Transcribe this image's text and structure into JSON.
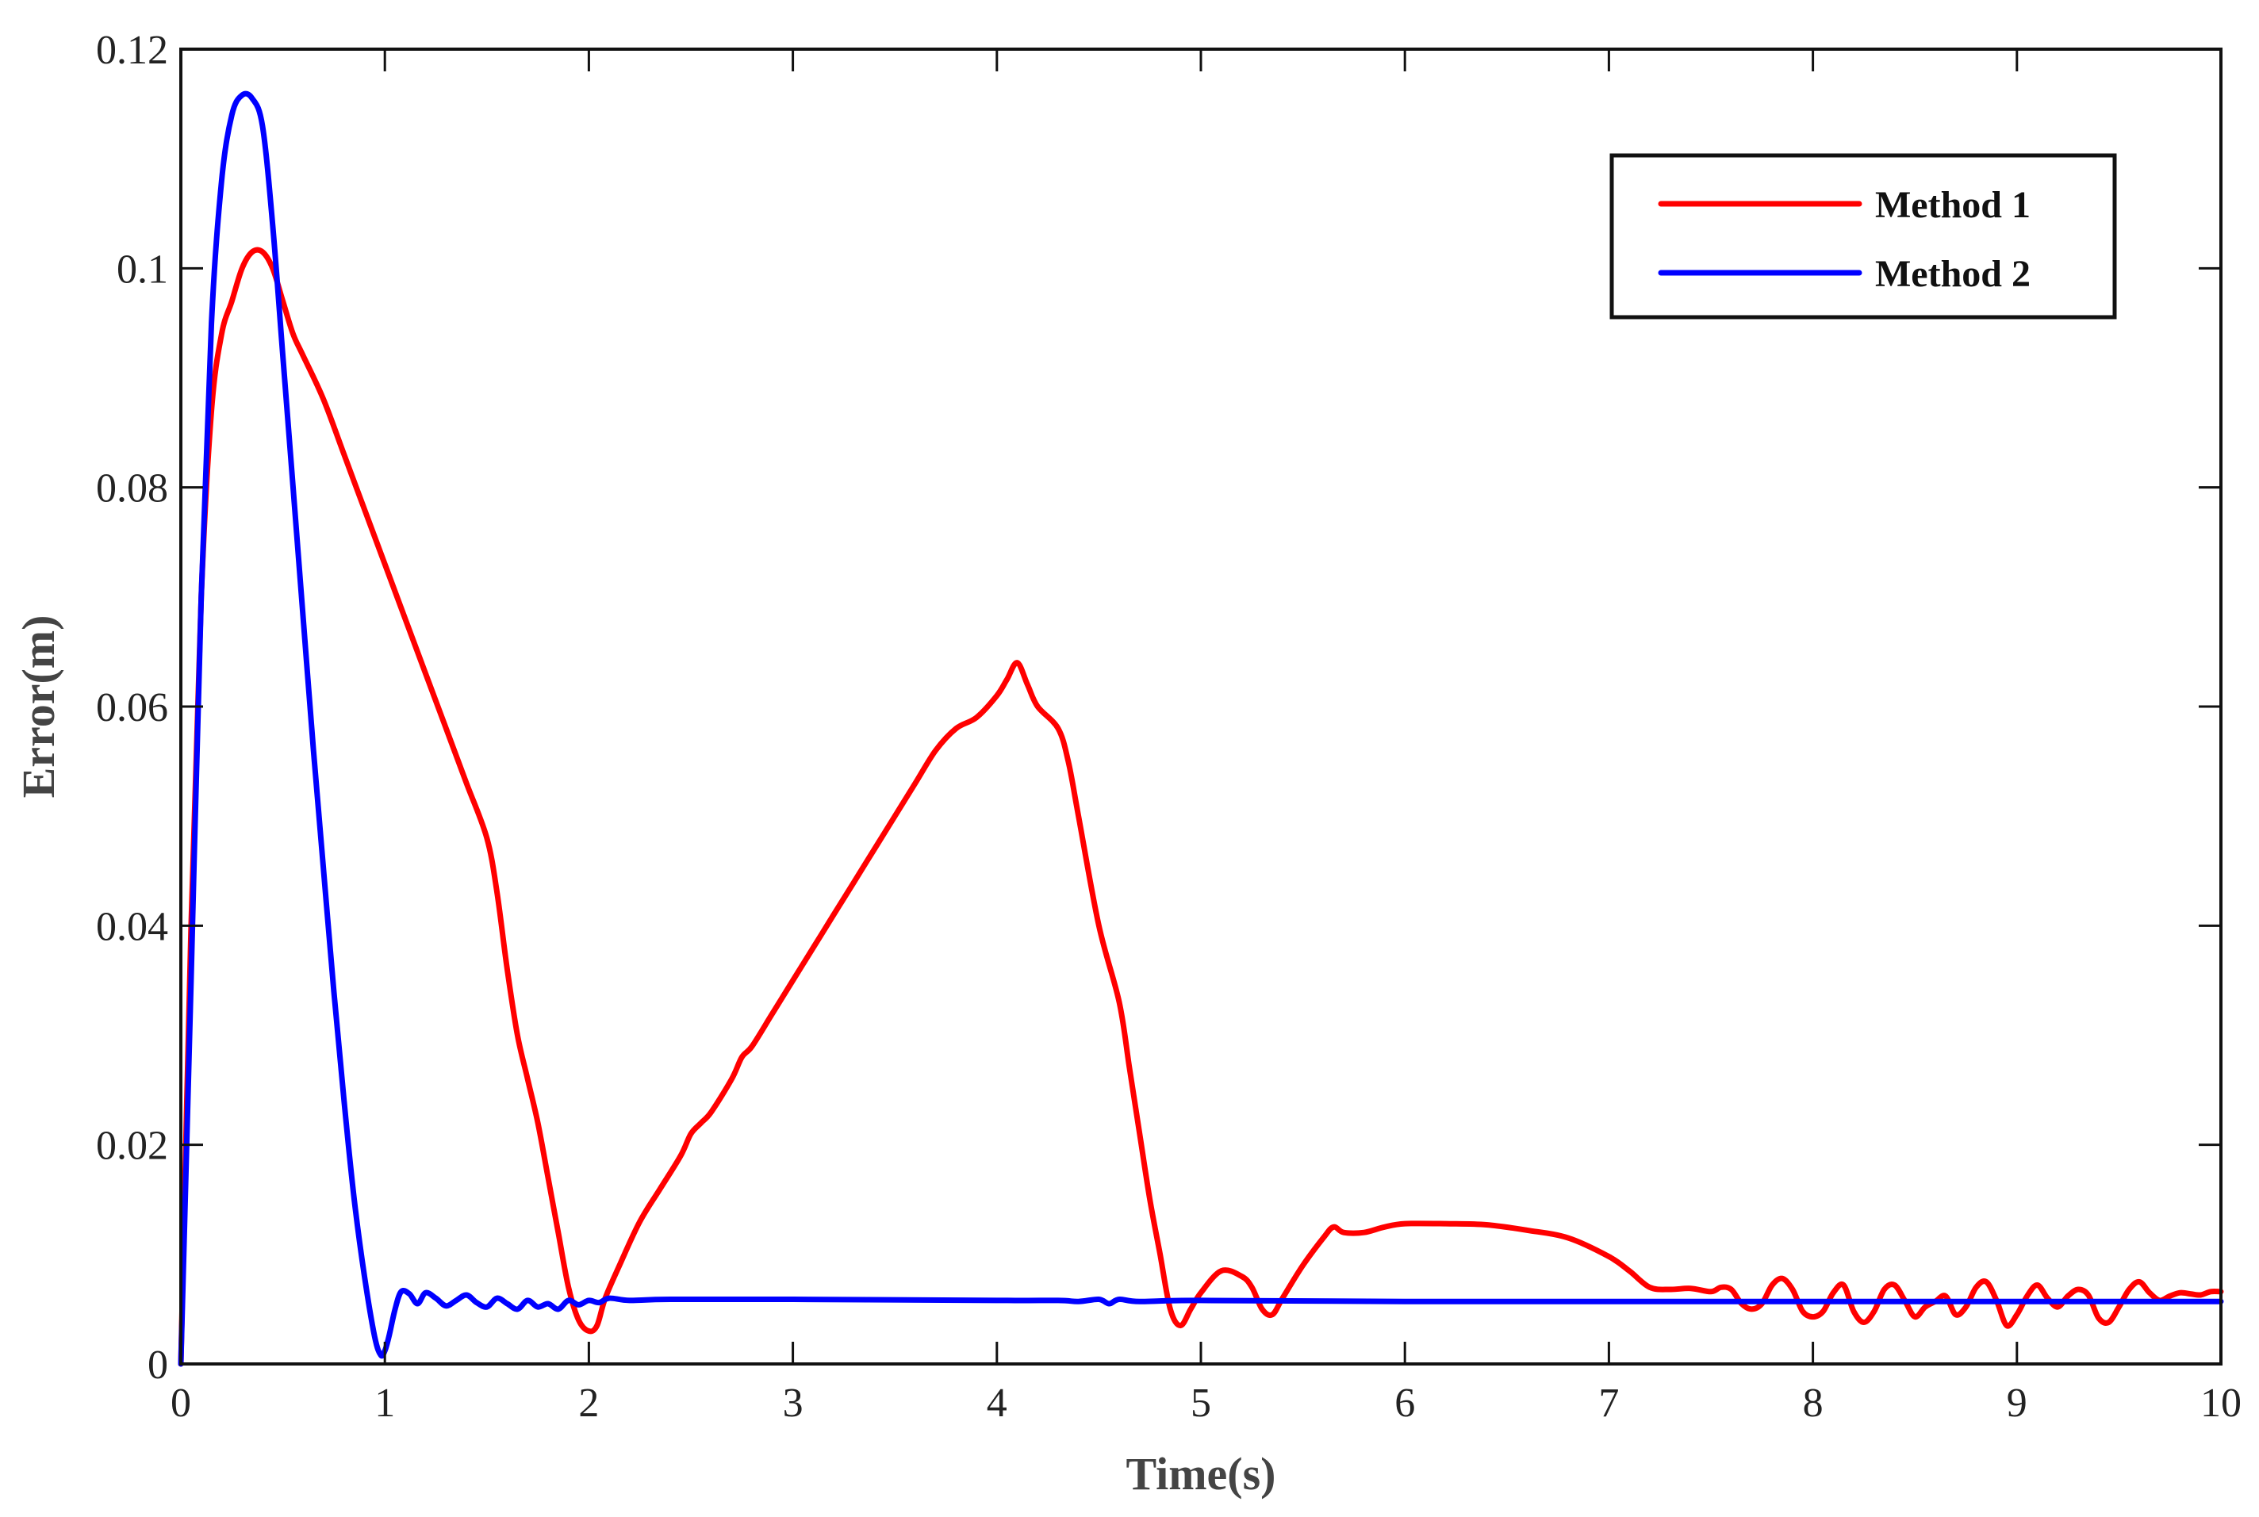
{
  "chart_data": {
    "type": "line",
    "xlabel": "Time(s)",
    "ylabel": "Error(m)",
    "xlim": [
      0,
      10
    ],
    "ylim": [
      0,
      0.12
    ],
    "xticks": [
      0,
      1,
      2,
      3,
      4,
      5,
      6,
      7,
      8,
      9,
      10
    ],
    "xtick_labels": [
      "0",
      "1",
      "2",
      "3",
      "4",
      "5",
      "6",
      "7",
      "8",
      "9",
      "10"
    ],
    "yticks": [
      0,
      0.02,
      0.04,
      0.06,
      0.08,
      0.1,
      0.12
    ],
    "ytick_labels": [
      "0",
      "0.02",
      "0.04",
      "0.06",
      "0.08",
      "0.1",
      "0.12"
    ],
    "grid": false,
    "legend_position": "top-right",
    "series": [
      {
        "name": "Method 1",
        "color": "#ff0000",
        "x": [
          0,
          0.05,
          0.1,
          0.15,
          0.2,
          0.25,
          0.3,
          0.35,
          0.4,
          0.45,
          0.5,
          0.55,
          0.6,
          0.7,
          0.8,
          0.9,
          1.0,
          1.1,
          1.2,
          1.3,
          1.4,
          1.5,
          1.55,
          1.6,
          1.65,
          1.7,
          1.75,
          1.8,
          1.85,
          1.9,
          1.95,
          2.0,
          2.04,
          2.08,
          2.15,
          2.25,
          2.35,
          2.45,
          2.5,
          2.55,
          2.6,
          2.7,
          2.75,
          2.8,
          2.9,
          3.0,
          3.1,
          3.2,
          3.3,
          3.4,
          3.5,
          3.6,
          3.7,
          3.8,
          3.9,
          4.0,
          4.05,
          4.1,
          4.15,
          4.2,
          4.3,
          4.35,
          4.4,
          4.5,
          4.6,
          4.65,
          4.7,
          4.75,
          4.8,
          4.85,
          4.9,
          4.95,
          5.0,
          5.1,
          5.2,
          5.25,
          5.3,
          5.35,
          5.4,
          5.5,
          5.6,
          5.65,
          5.7,
          5.8,
          5.9,
          6.0,
          6.2,
          6.4,
          6.6,
          6.8,
          7.0,
          7.1,
          7.2,
          7.3,
          7.4,
          7.5,
          7.55,
          7.6,
          7.65,
          7.7,
          7.75,
          7.8,
          7.85,
          7.9,
          7.95,
          8.0,
          8.05,
          8.1,
          8.15,
          8.2,
          8.25,
          8.3,
          8.35,
          8.4,
          8.45,
          8.5,
          8.55,
          8.6,
          8.65,
          8.7,
          8.75,
          8.8,
          8.85,
          8.9,
          8.95,
          9.0,
          9.05,
          9.1,
          9.15,
          9.2,
          9.25,
          9.3,
          9.35,
          9.4,
          9.45,
          9.5,
          9.55,
          9.6,
          9.65,
          9.7,
          9.75,
          9.8,
          9.85,
          9.9,
          9.95,
          10.0
        ],
        "values": [
          0,
          0.04,
          0.07,
          0.087,
          0.094,
          0.097,
          0.1,
          0.1015,
          0.1015,
          0.1,
          0.097,
          0.094,
          0.092,
          0.088,
          0.083,
          0.078,
          0.073,
          0.068,
          0.063,
          0.058,
          0.053,
          0.048,
          0.043,
          0.036,
          0.03,
          0.026,
          0.022,
          0.017,
          0.012,
          0.007,
          0.004,
          0.003,
          0.0035,
          0.006,
          0.009,
          0.013,
          0.016,
          0.019,
          0.021,
          0.022,
          0.023,
          0.026,
          0.028,
          0.029,
          0.032,
          0.035,
          0.038,
          0.041,
          0.044,
          0.047,
          0.05,
          0.053,
          0.056,
          0.058,
          0.059,
          0.061,
          0.0625,
          0.064,
          0.062,
          0.06,
          0.058,
          0.055,
          0.05,
          0.04,
          0.033,
          0.027,
          0.021,
          0.015,
          0.01,
          0.005,
          0.0035,
          0.005,
          0.0065,
          0.0085,
          0.008,
          0.007,
          0.005,
          0.0045,
          0.006,
          0.009,
          0.0115,
          0.0125,
          0.012,
          0.012,
          0.0125,
          0.0128,
          0.0128,
          0.0127,
          0.0122,
          0.0115,
          0.0098,
          0.0085,
          0.007,
          0.0068,
          0.0069,
          0.0066,
          0.007,
          0.0068,
          0.0055,
          0.005,
          0.0055,
          0.0072,
          0.0078,
          0.0068,
          0.0048,
          0.0043,
          0.0048,
          0.0065,
          0.0072,
          0.0048,
          0.0038,
          0.0048,
          0.0068,
          0.0072,
          0.0058,
          0.0043,
          0.0052,
          0.0057,
          0.0062,
          0.0045,
          0.0052,
          0.007,
          0.0075,
          0.0058,
          0.0035,
          0.0045,
          0.0062,
          0.0072,
          0.006,
          0.0052,
          0.0062,
          0.0068,
          0.0063,
          0.0042,
          0.0038,
          0.0052,
          0.0068,
          0.0075,
          0.0065,
          0.0058,
          0.0062,
          0.0065,
          0.0064,
          0.0063,
          0.0066,
          0.0066
        ]
      },
      {
        "name": "Method 2",
        "color": "#0000ff",
        "x": [
          0,
          0.05,
          0.1,
          0.15,
          0.2,
          0.25,
          0.3,
          0.35,
          0.4,
          0.45,
          0.5,
          0.55,
          0.6,
          0.65,
          0.7,
          0.75,
          0.8,
          0.85,
          0.9,
          0.95,
          0.98,
          1.0,
          1.02,
          1.05,
          1.08,
          1.12,
          1.16,
          1.2,
          1.25,
          1.3,
          1.35,
          1.4,
          1.45,
          1.5,
          1.55,
          1.6,
          1.65,
          1.7,
          1.75,
          1.8,
          1.85,
          1.9,
          1.95,
          2.0,
          2.05,
          2.1,
          2.2,
          2.4,
          3.0,
          4.0,
          4.3,
          4.4,
          4.5,
          4.55,
          4.6,
          4.7,
          5.0,
          6.0,
          7.0,
          8.0,
          9.0,
          10.0
        ],
        "values": [
          0,
          0.035,
          0.07,
          0.095,
          0.108,
          0.114,
          0.1158,
          0.1155,
          0.113,
          0.104,
          0.092,
          0.08,
          0.068,
          0.056,
          0.045,
          0.034,
          0.024,
          0.015,
          0.008,
          0.0025,
          0.0008,
          0.0012,
          0.0025,
          0.005,
          0.0066,
          0.0064,
          0.0055,
          0.0065,
          0.006,
          0.0053,
          0.0058,
          0.0063,
          0.0056,
          0.0052,
          0.006,
          0.0055,
          0.005,
          0.0058,
          0.0052,
          0.0055,
          0.005,
          0.0058,
          0.0054,
          0.0058,
          0.0056,
          0.006,
          0.0058,
          0.0059,
          0.0059,
          0.0058,
          0.0058,
          0.0057,
          0.0059,
          0.0055,
          0.0059,
          0.0057,
          0.0058,
          0.0057,
          0.0057,
          0.0057,
          0.0057,
          0.0057
        ]
      }
    ]
  }
}
